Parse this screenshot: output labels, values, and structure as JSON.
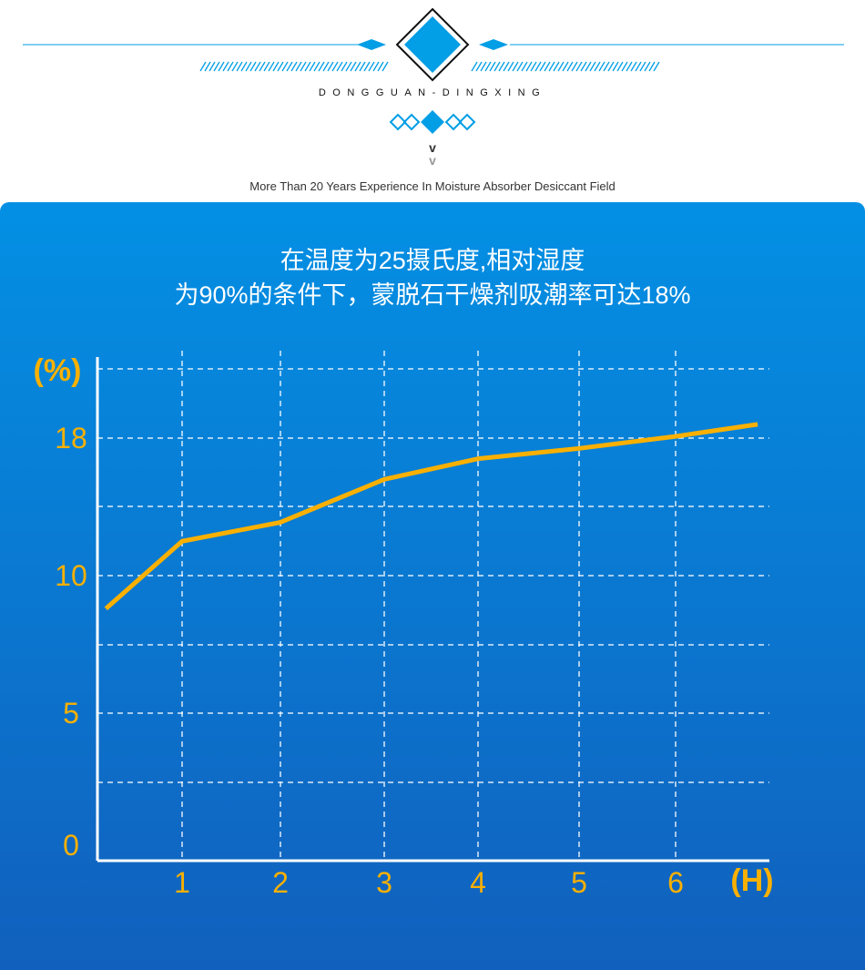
{
  "header": {
    "brand": "DONGGUAN-DINGXING",
    "chevron": "v",
    "tagline": "More Than 20 Years Experience In Moisture Absorber Desiccant Field",
    "accent": "#029ee6"
  },
  "title_lines": [
    "在温度为25摄氏度,相对湿度",
    "为90%的条件下，蒙脱石干燥剂吸潮率可达18%"
  ],
  "chart_data": {
    "type": "line",
    "title": "在温度为25摄氏度,相对湿度为90%的条件下，蒙脱石干燥剂吸潮率可达18%",
    "ylabel": "(%)",
    "xlabel": "(H)",
    "y_ticks": [
      "0",
      "5",
      "10",
      "18"
    ],
    "x_ticks": [
      "1",
      "2",
      "3",
      "4",
      "5",
      "6"
    ],
    "grid": true,
    "line_color": "#f9b000",
    "series": [
      {
        "x": [
          0.1,
          1,
          2,
          3,
          4,
          5,
          6,
          6.85
        ],
        "y": [
          8.8,
          12,
          13.1,
          15.6,
          16.8,
          17.4,
          18.1,
          18.8
        ]
      }
    ]
  }
}
